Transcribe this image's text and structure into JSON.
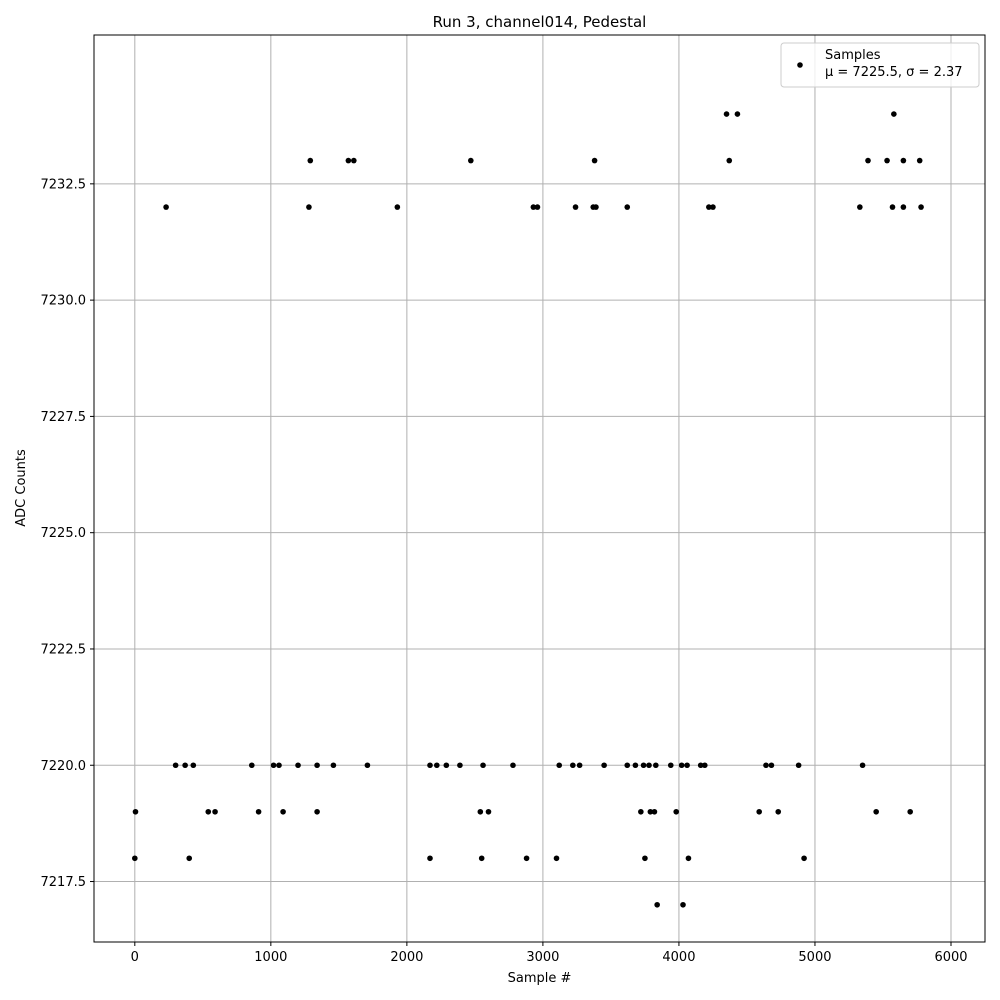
{
  "chart_data": {
    "type": "scatter",
    "title": "Run 3, channel014, Pedestal",
    "xlabel": "Sample #",
    "ylabel": "ADC Counts",
    "xlim": [
      -300,
      6250
    ],
    "ylim": [
      7216.2,
      7235.7
    ],
    "xticks": [
      0,
      1000,
      2000,
      3000,
      4000,
      5000,
      6000
    ],
    "xtick_labels": [
      "0",
      "1000",
      "2000",
      "3000",
      "4000",
      "5000",
      "6000"
    ],
    "yticks": [
      7217.5,
      7220.0,
      7222.5,
      7225.0,
      7227.5,
      7230.0,
      7232.5
    ],
    "ytick_labels": [
      "7217.5",
      "7220.0",
      "7222.5",
      "7225.0",
      "7227.5",
      "7230.0",
      "7232.5"
    ],
    "grid": true,
    "legend_position": "top-right",
    "marker_color": "#000000",
    "series": [
      {
        "name": "Samples",
        "stats_label": "μ = 7225.5, σ = 2.37",
        "points": [
          [
            0,
            7218
          ],
          [
            5,
            7219
          ],
          [
            300,
            7220
          ],
          [
            370,
            7220
          ],
          [
            430,
            7220
          ],
          [
            860,
            7220
          ],
          [
            1020,
            7220
          ],
          [
            1060,
            7220
          ],
          [
            1200,
            7220
          ],
          [
            1340,
            7220
          ],
          [
            1460,
            7220
          ],
          [
            1710,
            7220
          ],
          [
            2170,
            7220
          ],
          [
            2220,
            7220
          ],
          [
            2290,
            7220
          ],
          [
            2390,
            7220
          ],
          [
            2560,
            7220
          ],
          [
            2780,
            7220
          ],
          [
            3120,
            7220
          ],
          [
            3220,
            7220
          ],
          [
            3270,
            7220
          ],
          [
            3450,
            7220
          ],
          [
            3620,
            7220
          ],
          [
            3680,
            7220
          ],
          [
            3740,
            7220
          ],
          [
            3780,
            7220
          ],
          [
            3830,
            7220
          ],
          [
            3940,
            7220
          ],
          [
            4020,
            7220
          ],
          [
            4060,
            7220
          ],
          [
            4160,
            7220
          ],
          [
            4190,
            7220
          ],
          [
            4640,
            7220
          ],
          [
            4680,
            7220
          ],
          [
            4880,
            7220
          ],
          [
            5350,
            7220
          ],
          [
            540,
            7219
          ],
          [
            590,
            7219
          ],
          [
            910,
            7219
          ],
          [
            1090,
            7219
          ],
          [
            1340,
            7219
          ],
          [
            2540,
            7219
          ],
          [
            2600,
            7219
          ],
          [
            3720,
            7219
          ],
          [
            3790,
            7219
          ],
          [
            3820,
            7219
          ],
          [
            3980,
            7219
          ],
          [
            4590,
            7219
          ],
          [
            4730,
            7219
          ],
          [
            5450,
            7219
          ],
          [
            5700,
            7219
          ],
          [
            400,
            7218
          ],
          [
            2170,
            7218
          ],
          [
            2550,
            7218
          ],
          [
            2880,
            7218
          ],
          [
            3100,
            7218
          ],
          [
            3750,
            7218
          ],
          [
            4070,
            7218
          ],
          [
            4920,
            7218
          ],
          [
            3840,
            7217
          ],
          [
            4030,
            7217
          ],
          [
            1290,
            7233
          ],
          [
            1570,
            7233
          ],
          [
            1610,
            7233
          ],
          [
            2470,
            7233
          ],
          [
            3380,
            7233
          ],
          [
            4370,
            7233
          ],
          [
            5390,
            7233
          ],
          [
            5530,
            7233
          ],
          [
            5650,
            7233
          ],
          [
            5770,
            7233
          ],
          [
            4350,
            7234
          ],
          [
            4430,
            7234
          ],
          [
            5580,
            7234
          ],
          [
            230,
            7232
          ],
          [
            1280,
            7232
          ],
          [
            1930,
            7232
          ],
          [
            2930,
            7232
          ],
          [
            2960,
            7232
          ],
          [
            3240,
            7232
          ],
          [
            3370,
            7232
          ],
          [
            3390,
            7232
          ],
          [
            3620,
            7232
          ],
          [
            4220,
            7232
          ],
          [
            4250,
            7232
          ],
          [
            5330,
            7232
          ],
          [
            5570,
            7232
          ],
          [
            5650,
            7232
          ],
          [
            5780,
            7232
          ]
        ]
      }
    ]
  }
}
